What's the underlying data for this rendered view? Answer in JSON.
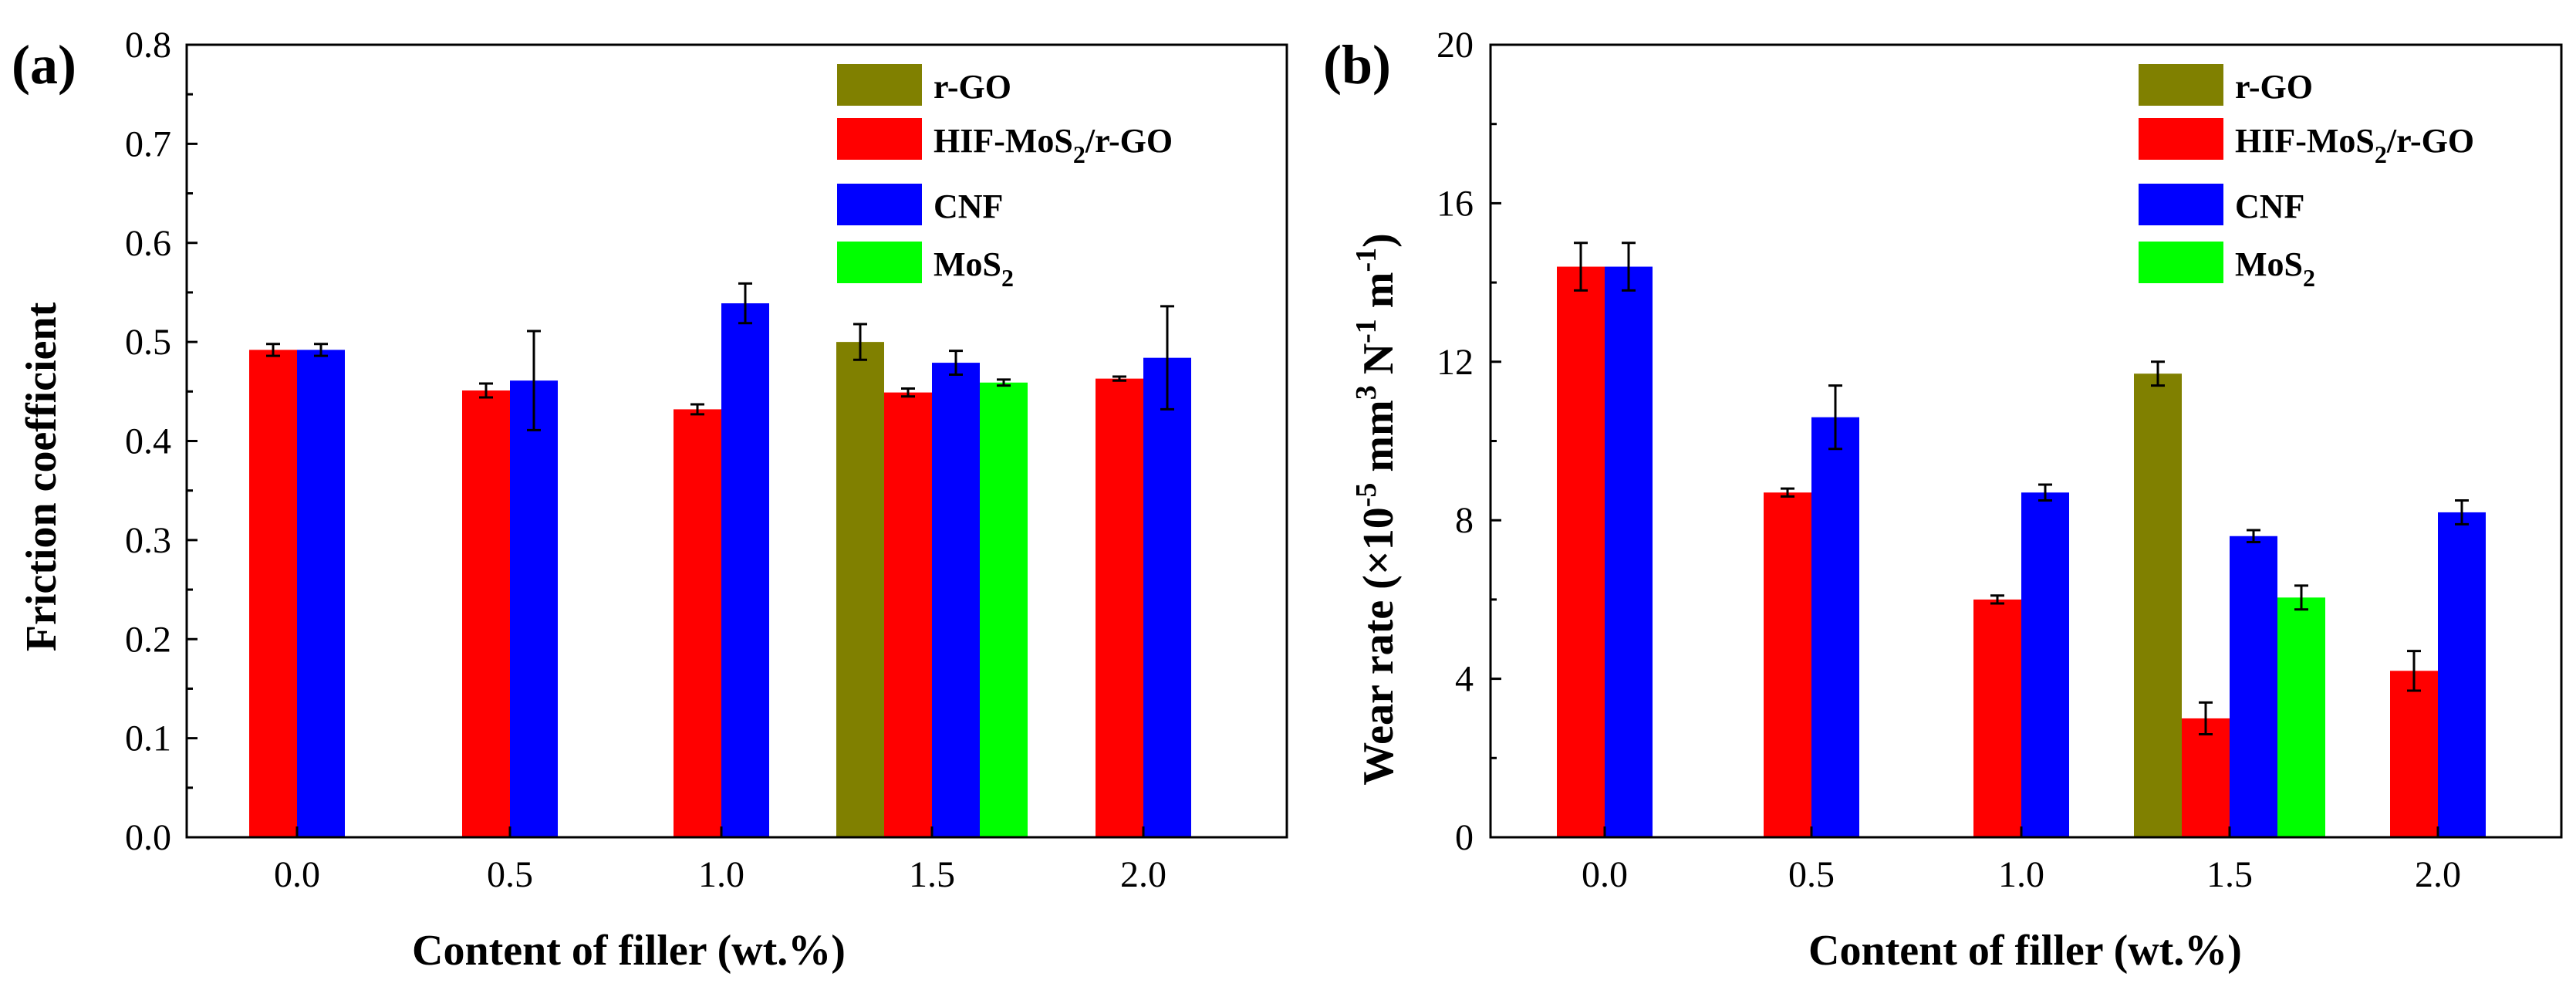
{
  "colors": {
    "r-GO": "#808000",
    "HIF-MoS2/r-GO": "#ff0000",
    "CNF": "#0000ff",
    "MoS2": "#00ff00"
  },
  "legend": [
    {
      "key": "r-GO",
      "base": "r-GO",
      "sub": "",
      "tail": ""
    },
    {
      "key": "HIF-MoS2/r-GO",
      "base": "HIF-MoS",
      "sub": "2",
      "tail": "/r-GO"
    },
    {
      "key": "CNF",
      "base": "CNF",
      "sub": "",
      "tail": ""
    },
    {
      "key": "MoS2",
      "base": "MoS",
      "sub": "2",
      "tail": ""
    }
  ],
  "chart_data": [
    {
      "type": "bar",
      "panel_label": "(a)",
      "xlabel": "Content of filler (wt.%)",
      "ylabel": "Friction coefficient",
      "ylim": [
        0,
        0.8
      ],
      "yticks": [
        "0.0",
        "0.1",
        "0.2",
        "0.3",
        "0.4",
        "0.5",
        "0.6",
        "0.7",
        "0.8"
      ],
      "categories": [
        "0.0",
        "0.5",
        "1.0",
        "1.5",
        "2.0"
      ],
      "series": [
        {
          "name": "r-GO",
          "values": [
            null,
            null,
            null,
            0.5,
            null
          ],
          "errors": [
            null,
            null,
            null,
            0.018,
            null
          ]
        },
        {
          "name": "HIF-MoS2/r-GO",
          "values": [
            0.492,
            0.451,
            0.432,
            0.449,
            0.463
          ],
          "errors": [
            0.006,
            0.007,
            0.005,
            0.004,
            0.002
          ]
        },
        {
          "name": "CNF",
          "values": [
            0.492,
            0.461,
            0.539,
            0.479,
            0.484
          ],
          "errors": [
            0.006,
            0.05,
            0.02,
            0.012,
            0.052
          ]
        },
        {
          "name": "MoS2",
          "values": [
            null,
            null,
            null,
            0.459,
            null
          ],
          "errors": [
            null,
            null,
            null,
            0.003,
            null
          ]
        }
      ]
    },
    {
      "type": "bar",
      "panel_label": "(b)",
      "xlabel": "Content of filler (wt.%)",
      "ylabel_parts": {
        "base": "Wear rate (×10",
        "sup1": "-5",
        "mid": " mm",
        "sup2": "3",
        "mid2": " N",
        "sup3": "-1",
        "mid3": " m",
        "sup4": "-1",
        "end": ")"
      },
      "ylim": [
        0,
        20
      ],
      "yticks": [
        "0",
        "4",
        "8",
        "12",
        "16",
        "20"
      ],
      "categories": [
        "0.0",
        "0.5",
        "1.0",
        "1.5",
        "2.0"
      ],
      "series": [
        {
          "name": "r-GO",
          "values": [
            null,
            null,
            null,
            11.7,
            null
          ],
          "errors": [
            null,
            null,
            null,
            0.3,
            null
          ]
        },
        {
          "name": "HIF-MoS2/r-GO",
          "values": [
            14.4,
            8.7,
            6.0,
            3.0,
            4.2
          ],
          "errors": [
            0.6,
            0.1,
            0.1,
            0.4,
            0.5
          ]
        },
        {
          "name": "CNF",
          "values": [
            14.4,
            10.6,
            8.7,
            7.6,
            8.2
          ],
          "errors": [
            0.6,
            0.8,
            0.2,
            0.15,
            0.3
          ]
        },
        {
          "name": "MoS2",
          "values": [
            null,
            null,
            null,
            6.05,
            null
          ],
          "errors": [
            null,
            null,
            null,
            0.3,
            null
          ]
        }
      ]
    }
  ]
}
